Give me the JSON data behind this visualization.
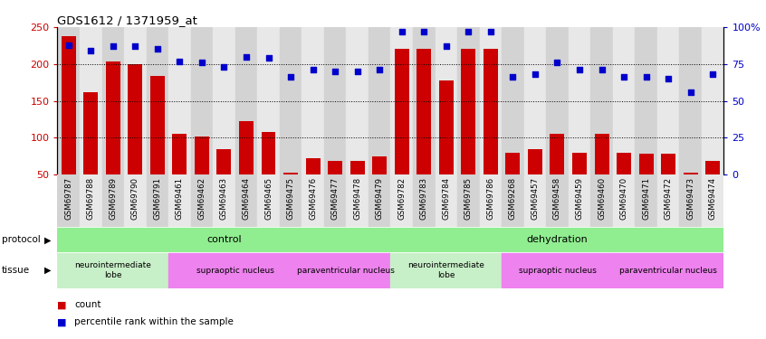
{
  "title": "GDS1612 / 1371959_at",
  "samples": [
    "GSM69787",
    "GSM69788",
    "GSM69789",
    "GSM69790",
    "GSM69791",
    "GSM69461",
    "GSM69462",
    "GSM69463",
    "GSM69464",
    "GSM69465",
    "GSM69475",
    "GSM69476",
    "GSM69477",
    "GSM69478",
    "GSM69479",
    "GSM69782",
    "GSM69783",
    "GSM69784",
    "GSM69785",
    "GSM69786",
    "GSM69268",
    "GSM69457",
    "GSM69458",
    "GSM69459",
    "GSM69460",
    "GSM69470",
    "GSM69471",
    "GSM69472",
    "GSM69473",
    "GSM69474"
  ],
  "counts": [
    238,
    162,
    203,
    200,
    184,
    105,
    102,
    85,
    122,
    108,
    52,
    72,
    68,
    68,
    75,
    220,
    220,
    178,
    220,
    220,
    80,
    84,
    105,
    80,
    105,
    80,
    78,
    78,
    52,
    68
  ],
  "percentile": [
    88,
    84,
    87,
    87,
    85,
    77,
    76,
    73,
    80,
    79,
    66,
    71,
    70,
    70,
    71,
    97,
    97,
    87,
    97,
    97,
    66,
    68,
    76,
    71,
    71,
    66,
    66,
    65,
    56,
    68
  ],
  "ylim_left": [
    50,
    250
  ],
  "ylim_right": [
    0,
    100
  ],
  "yticks_left": [
    50,
    100,
    150,
    200,
    250
  ],
  "yticks_right": [
    0,
    25,
    50,
    75,
    100
  ],
  "ytick_labels_left": [
    "50",
    "100",
    "150",
    "200",
    "250"
  ],
  "ytick_labels_right": [
    "0",
    "25",
    "50",
    "75",
    "100%"
  ],
  "bar_color": "#cc0000",
  "dot_color": "#0000cc",
  "protocol_color": "#90ee90",
  "tissue_neuro_color": "#c8f0c8",
  "tissue_supra_color": "#ee82ee",
  "tissue_para_color": "#ee82ee",
  "tick_bg_even": "#d3d3d3",
  "tick_bg_odd": "#e8e8e8",
  "tissue_groups": [
    {
      "label": "neurointermediate\nlobe",
      "count": 5,
      "color_key": "tissue_neuro_color"
    },
    {
      "label": "supraoptic nucleus",
      "count": 6,
      "color_key": "tissue_supra_color"
    },
    {
      "label": "paraventricular nucleus",
      "count": 4,
      "color_key": "tissue_para_color"
    },
    {
      "label": "neurointermediate\nlobe",
      "count": 5,
      "color_key": "tissue_neuro_color"
    },
    {
      "label": "supraoptic nucleus",
      "count": 5,
      "color_key": "tissue_supra_color"
    },
    {
      "label": "paraventricular nucleus",
      "count": 5,
      "color_key": "tissue_para_color"
    }
  ]
}
